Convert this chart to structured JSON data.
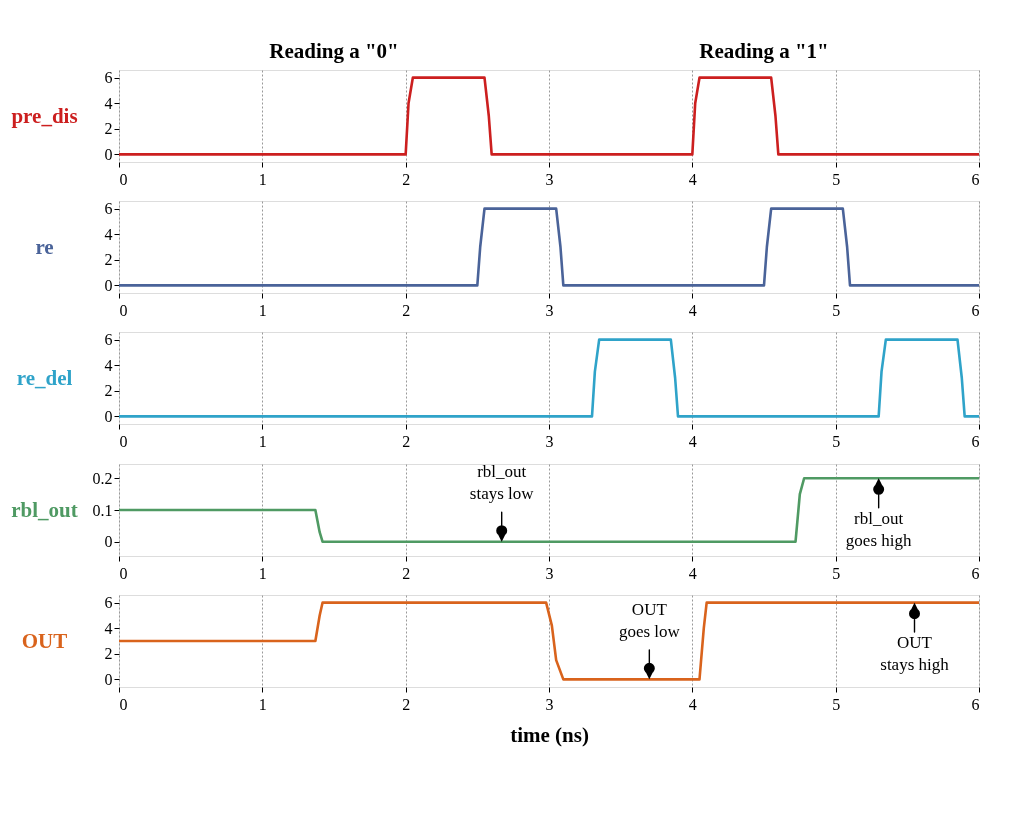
{
  "chart_data": [
    {
      "type": "line",
      "ylabel": "pre_dis",
      "annotations": [
        "Reading a \"0\"",
        "Reading a \"1\""
      ],
      "x": [
        0,
        2.0,
        2.02,
        2.05,
        2.55,
        2.58,
        2.6,
        4.0,
        4.02,
        4.05,
        4.55,
        4.58,
        4.6,
        6
      ],
      "series": [
        {
          "color": "#cc1f1f",
          "values": [
            0,
            0,
            4,
            6,
            6,
            3,
            0,
            0,
            4,
            6,
            6,
            3,
            0,
            0
          ]
        }
      ],
      "xlim": [
        0,
        6
      ],
      "xticks": [
        0,
        1,
        2,
        3,
        4,
        5,
        6
      ],
      "ylim": [
        -0.6,
        6.6
      ],
      "yticks": [
        0,
        2,
        4,
        6
      ],
      "grid": "x",
      "line_style": "solid"
    },
    {
      "type": "line",
      "ylabel": "re",
      "x": [
        0,
        2.5,
        2.52,
        2.55,
        3.05,
        3.08,
        3.1,
        4.5,
        4.52,
        4.55,
        5.05,
        5.08,
        5.1,
        6
      ],
      "series": [
        {
          "color": "#4a6399",
          "values": [
            0,
            0,
            3,
            6,
            6,
            3,
            0,
            0,
            3,
            6,
            6,
            3,
            0,
            0
          ]
        }
      ],
      "xlim": [
        0,
        6
      ],
      "xticks": [
        0,
        1,
        2,
        3,
        4,
        5,
        6
      ],
      "ylim": [
        -0.6,
        6.6
      ],
      "yticks": [
        0,
        2,
        4,
        6
      ],
      "grid": "x",
      "line_style": "solid"
    },
    {
      "type": "line",
      "ylabel": "re_del",
      "x": [
        0,
        3.3,
        3.32,
        3.35,
        3.85,
        3.88,
        3.9,
        5.3,
        5.32,
        5.35,
        5.85,
        5.88,
        5.9,
        6
      ],
      "series": [
        {
          "color": "#2fa3c9",
          "values": [
            0,
            0,
            3.5,
            6,
            6,
            3,
            0,
            0,
            3.5,
            6,
            6,
            3,
            0,
            0
          ]
        }
      ],
      "xlim": [
        0,
        6
      ],
      "xticks": [
        0,
        1,
        2,
        3,
        4,
        5,
        6
      ],
      "ylim": [
        -0.6,
        6.6
      ],
      "yticks": [
        0,
        2,
        4,
        6
      ],
      "grid": "x",
      "line_style": "solid"
    },
    {
      "type": "line",
      "ylabel": "rbl_out",
      "annotations": [
        {
          "text": "rbl_out\nstays low",
          "x": 2.67,
          "y": 0
        },
        {
          "text": "rbl_out\ngoes high",
          "x": 5.3,
          "y": 0.2
        }
      ],
      "x": [
        0,
        1.37,
        1.4,
        1.42,
        4.72,
        4.75,
        4.78,
        6
      ],
      "series": [
        {
          "color": "#4f9a63",
          "values": [
            0.1,
            0.1,
            0.03,
            0,
            0,
            0.15,
            0.2,
            0.2
          ]
        }
      ],
      "xlim": [
        0,
        6
      ],
      "xticks": [
        0,
        1,
        2,
        3,
        4,
        5,
        6
      ],
      "ylim": [
        -0.045,
        0.245
      ],
      "yticks": [
        0,
        0.1,
        0.2
      ],
      "grid": "x",
      "line_style": "solid"
    },
    {
      "type": "line",
      "ylabel": "OUT",
      "xlabel": "time (ns)",
      "annotations": [
        {
          "text": "OUT\ngoes low",
          "x": 3.7,
          "y": 0
        },
        {
          "text": "OUT\nstays high",
          "x": 5.55,
          "y": 6
        }
      ],
      "x": [
        0,
        1.37,
        1.4,
        1.42,
        2.98,
        3.02,
        3.05,
        3.1,
        4.05,
        4.08,
        4.1,
        6
      ],
      "series": [
        {
          "color": "#d9631c",
          "values": [
            3,
            3,
            5,
            6,
            6,
            4.2,
            1.5,
            0,
            0,
            4,
            6,
            6
          ]
        }
      ],
      "xlim": [
        0,
        6
      ],
      "xticks": [
        0,
        1,
        2,
        3,
        4,
        5,
        6
      ],
      "ylim": [
        -0.6,
        6.6
      ],
      "yticks": [
        0,
        2,
        4,
        6
      ],
      "grid": "x",
      "line_style": "solid"
    }
  ]
}
